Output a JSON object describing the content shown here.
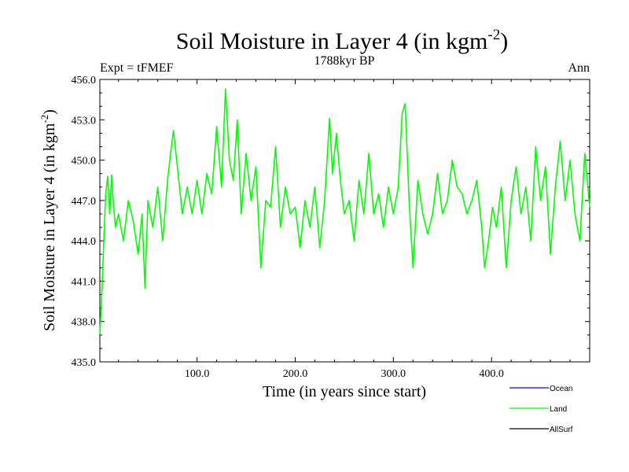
{
  "chart_data": {
    "type": "line",
    "title": "Soil Moisture in Layer 4 (in kgm",
    "title_sup": "-2",
    "title_end": ")",
    "subtitle": "1788kyr BP",
    "left_label": "Expt = tFMEF",
    "right_label": "Ann",
    "xlabel": "Time (in years since start)",
    "ylabel": "Soil Moisture in Layer 4 (in kgm",
    "ylabel_sup": "-2",
    "ylabel_end": ")",
    "xlim": [
      1,
      500
    ],
    "ylim": [
      435.0,
      456.0
    ],
    "x_ticks": [
      100,
      200,
      300,
      400
    ],
    "x_tick_labels": [
      "100.0",
      "200.0",
      "300.0",
      "400.0"
    ],
    "y_ticks": [
      435,
      438,
      441,
      444,
      447,
      450,
      453,
      456
    ],
    "y_tick_labels": [
      "435.0",
      "438.0",
      "441.0",
      "444.0",
      "447.0",
      "450.0",
      "453.0",
      "456.0"
    ],
    "legend": [
      {
        "name": "Ocean",
        "color": "#0000ff"
      },
      {
        "name": "Land",
        "color": "#00ff00"
      },
      {
        "name": "AllSurf",
        "color": "#000000"
      }
    ],
    "series": [
      {
        "name": "Land",
        "color": "#00ff00",
        "x": [
          1,
          3,
          5,
          7,
          9,
          11,
          13,
          15,
          17,
          20,
          25,
          30,
          35,
          40,
          44,
          47,
          50,
          55,
          60,
          65,
          70,
          73,
          76,
          80,
          85,
          90,
          95,
          100,
          105,
          110,
          115,
          120,
          125,
          129,
          133,
          137,
          141,
          145,
          150,
          155,
          160,
          165,
          170,
          175,
          180,
          185,
          190,
          195,
          200,
          205,
          210,
          215,
          220,
          225,
          230,
          235,
          238,
          242,
          246,
          250,
          255,
          260,
          265,
          270,
          275,
          280,
          285,
          290,
          295,
          300,
          305,
          309,
          312,
          316,
          320,
          325,
          330,
          335,
          340,
          345,
          350,
          355,
          360,
          365,
          370,
          375,
          380,
          385,
          390,
          393,
          397,
          401,
          405,
          410,
          415,
          420,
          425,
          430,
          435,
          440,
          445,
          450,
          455,
          460,
          465,
          470,
          475,
          480,
          485,
          490,
          495,
          500
        ],
        "values": [
          437.0,
          440.0,
          444.0,
          447.5,
          448.8,
          446.0,
          448.9,
          446.5,
          445.0,
          446.0,
          444.0,
          447.0,
          445.5,
          443.0,
          446.0,
          440.5,
          447.0,
          445.0,
          448.0,
          444.0,
          448.5,
          450.5,
          452.2,
          449.5,
          446.0,
          448.0,
          446.0,
          448.5,
          446.0,
          449.0,
          447.5,
          452.5,
          448.0,
          455.3,
          450.0,
          448.5,
          453.0,
          446.0,
          450.5,
          447.0,
          449.5,
          442.0,
          447.0,
          446.5,
          451.0,
          445.0,
          448.0,
          446.0,
          446.5,
          443.5,
          447.0,
          445.0,
          448.0,
          443.5,
          447.0,
          453.1,
          449.0,
          452.0,
          448.5,
          446.0,
          447.0,
          444.0,
          448.5,
          446.0,
          450.5,
          446.0,
          447.5,
          445.0,
          448.0,
          446.0,
          448.0,
          453.5,
          454.2,
          447.0,
          442.0,
          448.5,
          446.0,
          444.5,
          446.0,
          449.0,
          446.0,
          447.0,
          450.0,
          448.0,
          447.5,
          446.0,
          447.0,
          448.5,
          445.0,
          442.0,
          444.0,
          446.5,
          445.0,
          448.0,
          442.0,
          447.0,
          449.5,
          446.0,
          448.0,
          444.0,
          451.0,
          447.0,
          449.5,
          443.0,
          448.0,
          451.4,
          447.0,
          450.0,
          446.0,
          444.0,
          450.5,
          446.5
        ]
      }
    ]
  }
}
